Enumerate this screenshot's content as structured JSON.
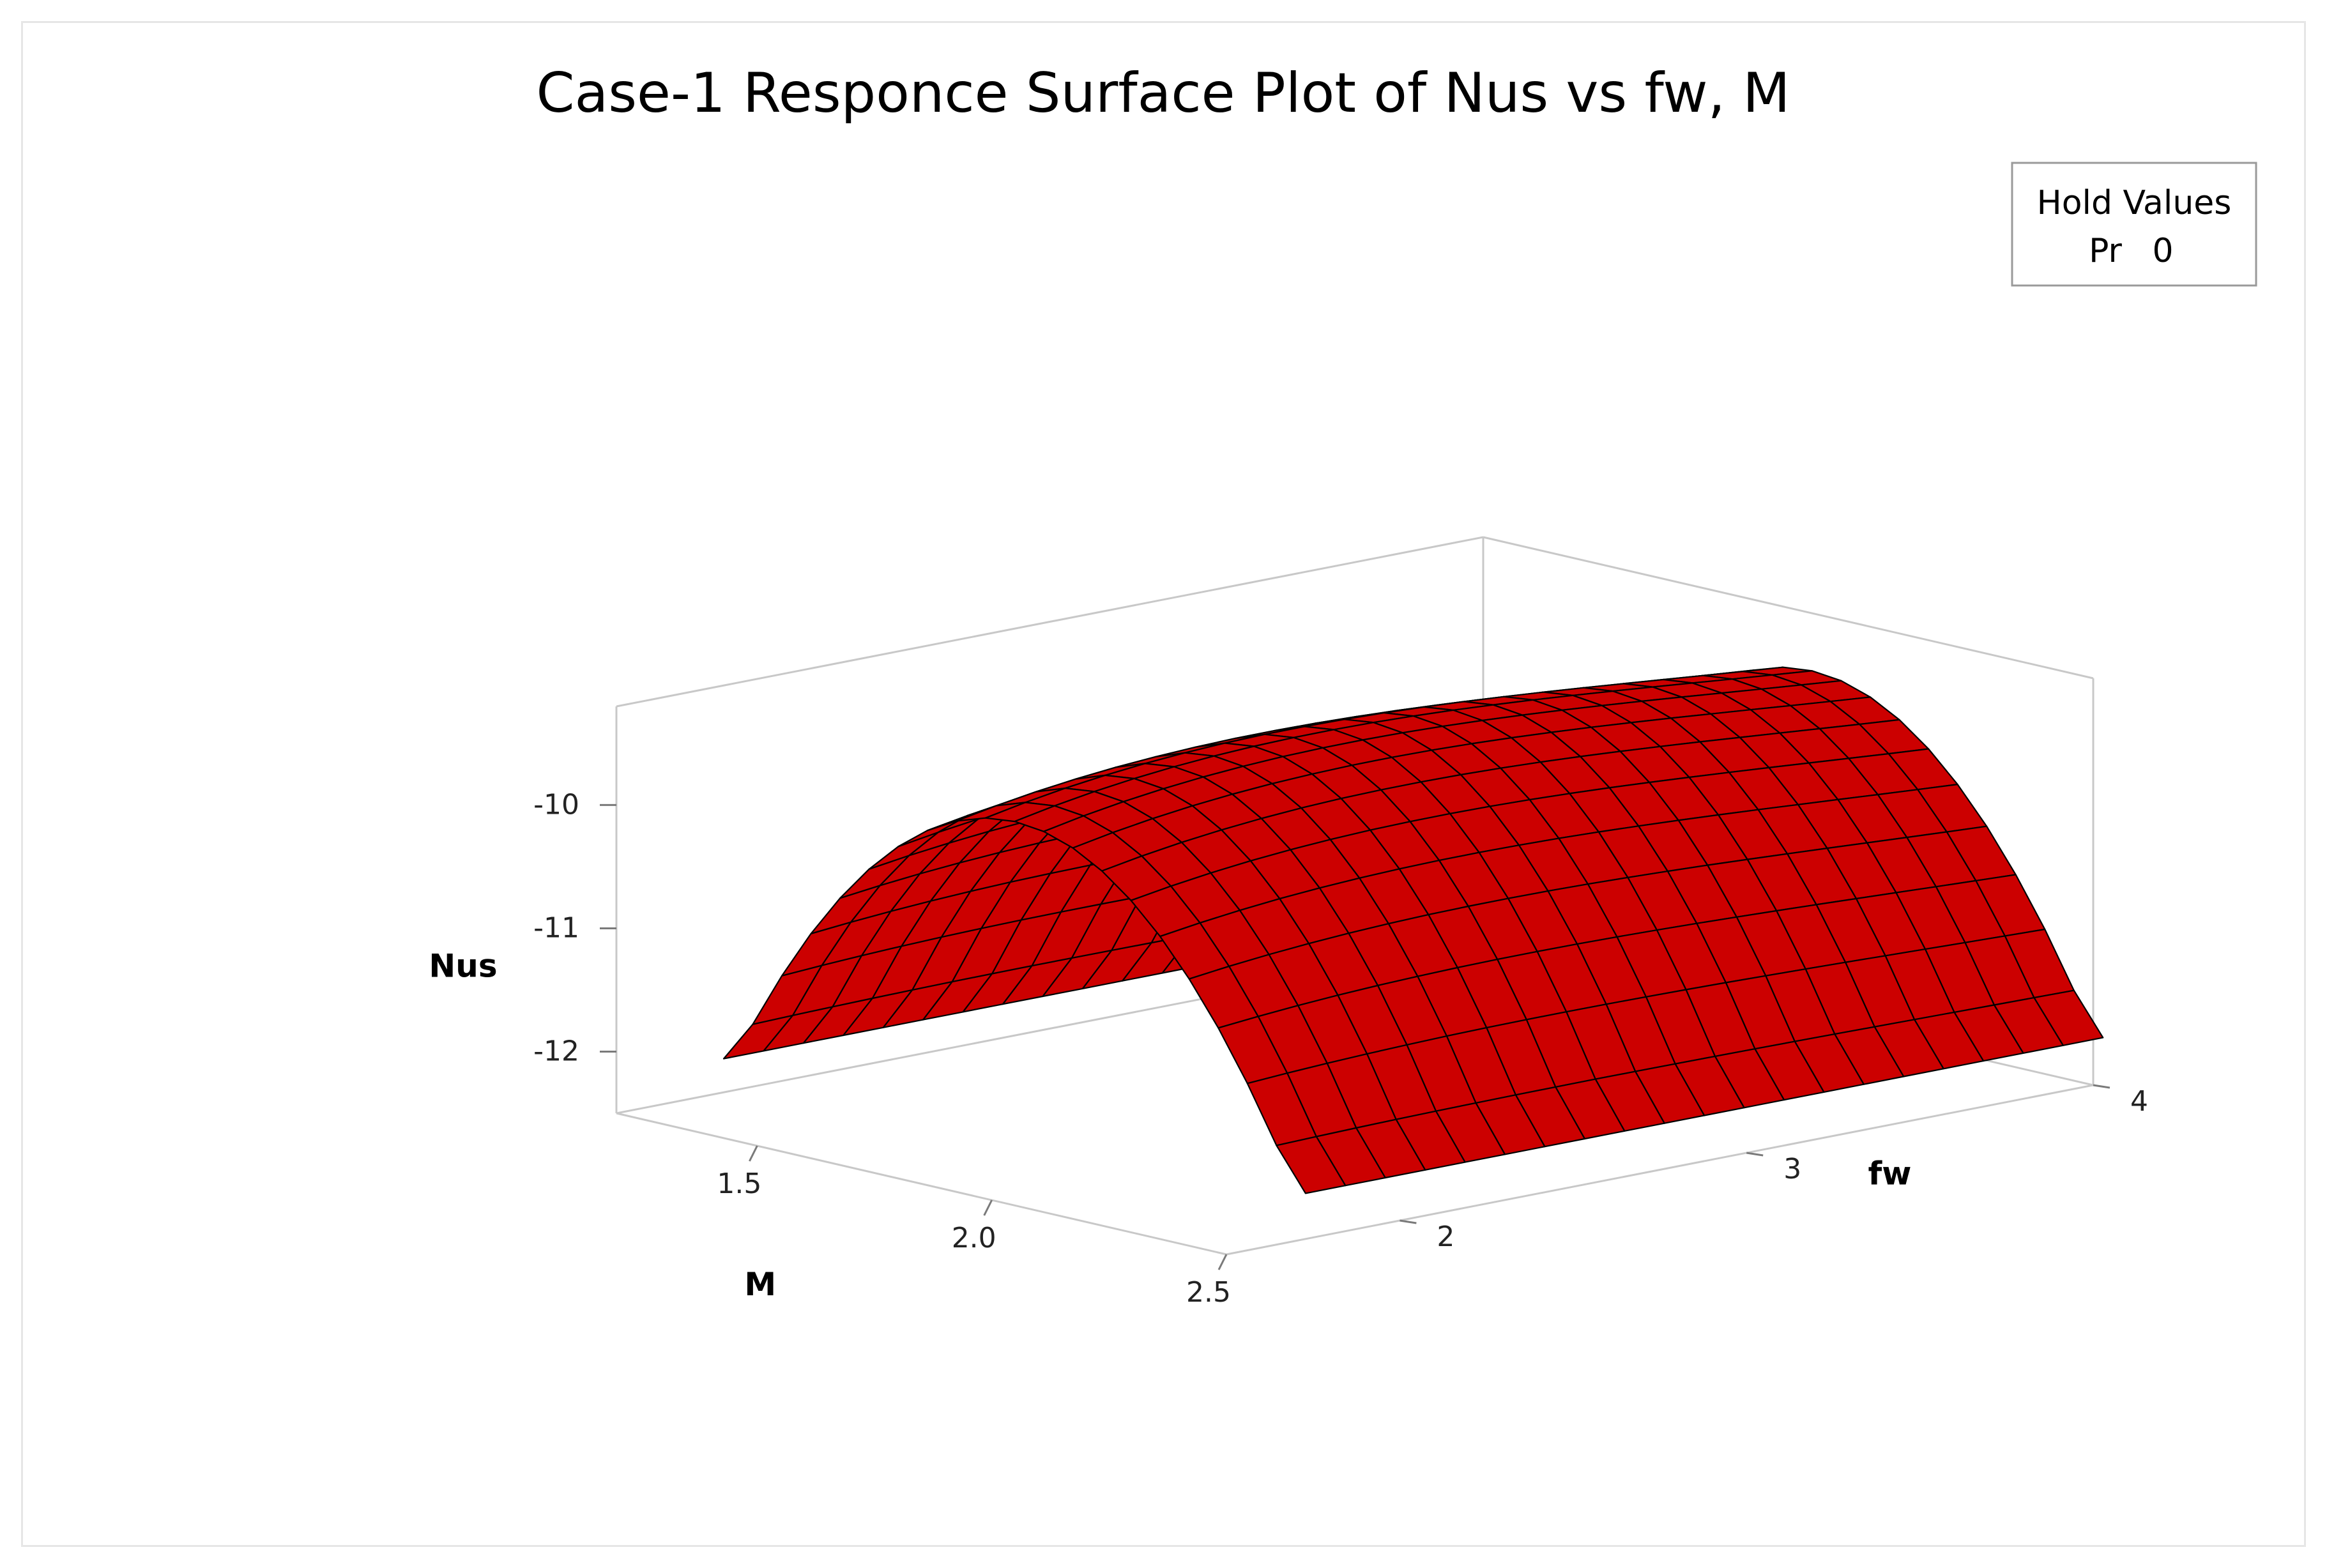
{
  "chart_data": {
    "type": "surface",
    "title": "Case-1 Responce Surface Plot of Nus vs fw, M",
    "xlabel": "M",
    "ylabel": "fw",
    "zlabel": "Nus",
    "x_ticks": [
      "1.5",
      "2.0",
      "2.5"
    ],
    "y_ticks": [
      "2",
      "3",
      "4"
    ],
    "z_ticks": [
      "-10",
      "-11",
      "-12"
    ],
    "xlim": [
      1.2,
      2.5
    ],
    "ylim": [
      1.5,
      4.0
    ],
    "zlim": [
      -12.5,
      -9.2
    ],
    "surface_color": "#cc0000",
    "grid_line_color": "#000000",
    "grid_divisions": 20,
    "z_min": -12.0,
    "z_peak": -9.29,
    "legend": {
      "title": "Hold Values",
      "items": [
        {
          "name": "Pr",
          "value": "0"
        }
      ],
      "placement": "top-right"
    }
  }
}
